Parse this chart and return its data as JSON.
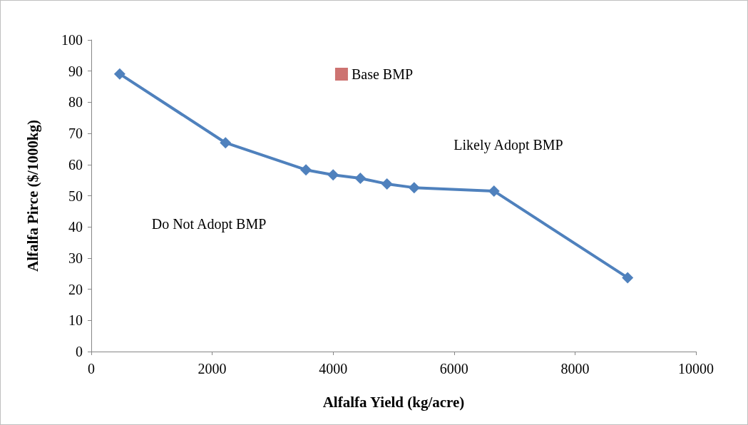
{
  "chart_data": {
    "type": "line",
    "xlabel": "Alfalfa Yield (kg/acre)",
    "ylabel": "Alfalfa Pirce ($/1000kg)",
    "xlim": [
      0,
      10000
    ],
    "xticks": [
      0,
      2000,
      4000,
      6000,
      8000,
      10000
    ],
    "ylim": [
      0,
      100
    ],
    "yticks": [
      0,
      10,
      20,
      30,
      40,
      50,
      60,
      70,
      80,
      90,
      100
    ],
    "grid": false,
    "legend": "top",
    "marker": "diamond",
    "line_style": "solid",
    "x": [
      470,
      2220,
      3550,
      4000,
      4450,
      4890,
      5340,
      6660,
      8870
    ],
    "series": [
      {
        "color": "#4f81bd",
        "values": [
          89.1,
          67.0,
          58.3,
          56.7,
          55.6,
          53.8,
          52.6,
          51.5,
          23.7
        ]
      },
      {
        "name": "Base BMP",
        "type": "scatter",
        "marker": "square",
        "color": "#c0504d",
        "values": [
          null,
          null,
          null,
          null,
          null,
          null,
          null,
          null,
          null
        ]
      }
    ],
    "annotations": [
      "Do Not Adopt BMP",
      "Likely Adopt BMP"
    ]
  }
}
